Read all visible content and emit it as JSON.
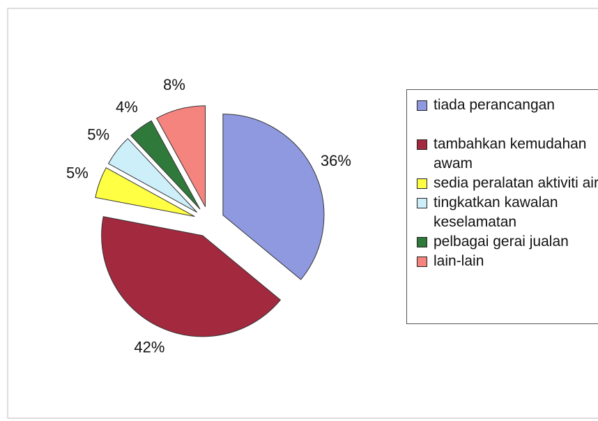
{
  "chart_data": {
    "type": "pie",
    "categories": [
      "tiada perancangan",
      "tambahkan kemudahan awam",
      "sedia peralatan aktiviti air",
      "tingkatkan kawalan keselamatan",
      "pelbagai gerai jualan",
      "lain-lain"
    ],
    "values": [
      36,
      42,
      5,
      5,
      4,
      8
    ],
    "value_labels": [
      "36%",
      "42%",
      "5%",
      "5%",
      "4%",
      "8%"
    ],
    "colors": [
      "#8f99e0",
      "#a3293f",
      "#ffff44",
      "#cdeffa",
      "#2f7a3a",
      "#f5847f"
    ]
  }
}
